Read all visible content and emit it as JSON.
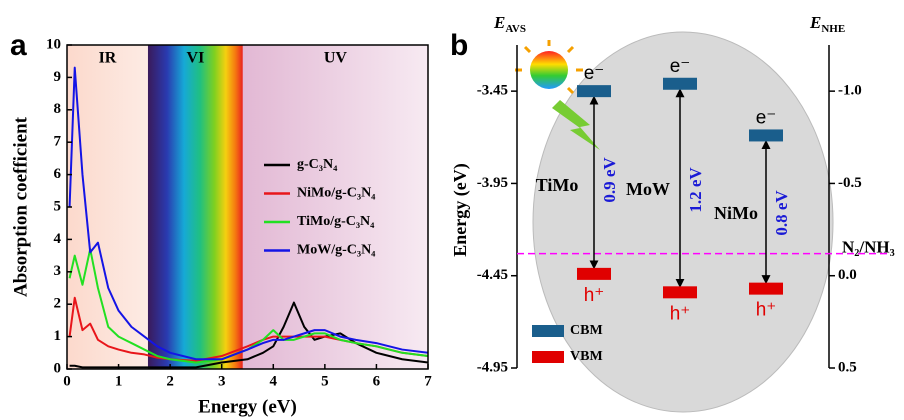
{
  "chart_data": [
    {
      "type": "line",
      "panel": "a",
      "xlabel": "Energy (eV)",
      "ylabel": "Absorption coefficient",
      "xlim": [
        0,
        7
      ],
      "ylim": [
        0,
        10
      ],
      "xticks": [
        0,
        1,
        2,
        3,
        4,
        5,
        6,
        7
      ],
      "yticks": [
        0,
        1,
        2,
        3,
        4,
        5,
        6,
        7,
        8,
        9,
        10
      ],
      "regions": [
        {
          "label": "IR",
          "from": 0,
          "to": 1.57
        },
        {
          "label": "VI",
          "from": 1.57,
          "to": 3.41
        },
        {
          "label": "UV",
          "from": 3.41,
          "to": 7
        }
      ],
      "x": [
        0.05,
        0.15,
        0.3,
        0.45,
        0.6,
        0.8,
        1.0,
        1.25,
        1.5,
        1.75,
        2.0,
        2.5,
        3.0,
        3.5,
        3.8,
        4.0,
        4.2,
        4.4,
        4.6,
        4.8,
        5.0,
        5.3,
        5.6,
        6.0,
        6.5,
        7.0
      ],
      "series": [
        {
          "name": "g-C₃N₄",
          "color": "#000000",
          "values": [
            0.1,
            0.1,
            0.05,
            0.05,
            0.05,
            0.05,
            0.05,
            0.05,
            0.05,
            0.05,
            0.05,
            0.05,
            0.2,
            0.3,
            0.5,
            0.7,
            1.3,
            2.05,
            1.3,
            0.9,
            1.0,
            1.1,
            0.8,
            0.5,
            0.3,
            0.2
          ]
        },
        {
          "name": "NiMo/g-C₃N₄",
          "color": "#e8161b",
          "values": [
            1.0,
            2.2,
            1.2,
            1.4,
            0.9,
            0.7,
            0.6,
            0.5,
            0.45,
            0.35,
            0.3,
            0.25,
            0.4,
            0.7,
            0.9,
            1.0,
            1.0,
            1.0,
            1.0,
            1.0,
            1.0,
            0.9,
            0.8,
            0.7,
            0.5,
            0.4
          ]
        },
        {
          "name": "TiMo/g-C₃N₄",
          "color": "#22e022",
          "values": [
            2.8,
            3.5,
            2.6,
            3.7,
            2.5,
            1.3,
            1.0,
            0.8,
            0.6,
            0.4,
            0.3,
            0.2,
            0.3,
            0.6,
            0.9,
            1.2,
            0.9,
            0.9,
            1.0,
            1.1,
            1.1,
            0.9,
            0.8,
            0.7,
            0.5,
            0.4
          ]
        },
        {
          "name": "MoW/g-C₃N₄",
          "color": "#1414e6",
          "values": [
            5.0,
            9.3,
            6.0,
            3.6,
            3.9,
            2.5,
            1.8,
            1.3,
            1.0,
            0.7,
            0.5,
            0.3,
            0.3,
            0.6,
            0.8,
            0.9,
            0.9,
            1.0,
            1.1,
            1.2,
            1.2,
            1.0,
            0.9,
            0.8,
            0.6,
            0.5
          ]
        }
      ]
    },
    {
      "type": "band",
      "panel": "b",
      "ylabel": "Energy (eV)",
      "y_title": {
        "symbol": "E",
        "subscript": "AVS"
      },
      "y2_title": {
        "symbol": "E",
        "subscript": "NHE"
      },
      "ylim": [
        -4.95,
        -3.2
      ],
      "yticks": [
        -3.45,
        -3.95,
        -4.45,
        -4.95
      ],
      "y2lim": [
        0.5,
        -1.25
      ],
      "y2ticks": [
        {
          "value": -1,
          "label": "-1.0"
        },
        -0.5,
        {
          "value": 0,
          "label": "0.0"
        },
        0.5
      ],
      "categories": [
        "TiMo",
        "MoW",
        "NiMo"
      ],
      "gap_labels": [
        "0.9 eV",
        "1.2 eV",
        "0.8 eV"
      ],
      "electron_label": "e⁻",
      "hole_label": "h⁺",
      "series": [
        {
          "name": "CBM",
          "color": "#1a5e8c",
          "values": [
            -3.45,
            -3.41,
            -3.69
          ]
        },
        {
          "name": "VBM",
          "color": "#e00000",
          "values": [
            -4.44,
            -4.54,
            -4.52
          ]
        }
      ],
      "reference_line": {
        "label": "N₂/NH₃",
        "value": -4.33,
        "color": "#ff00ff"
      }
    }
  ]
}
